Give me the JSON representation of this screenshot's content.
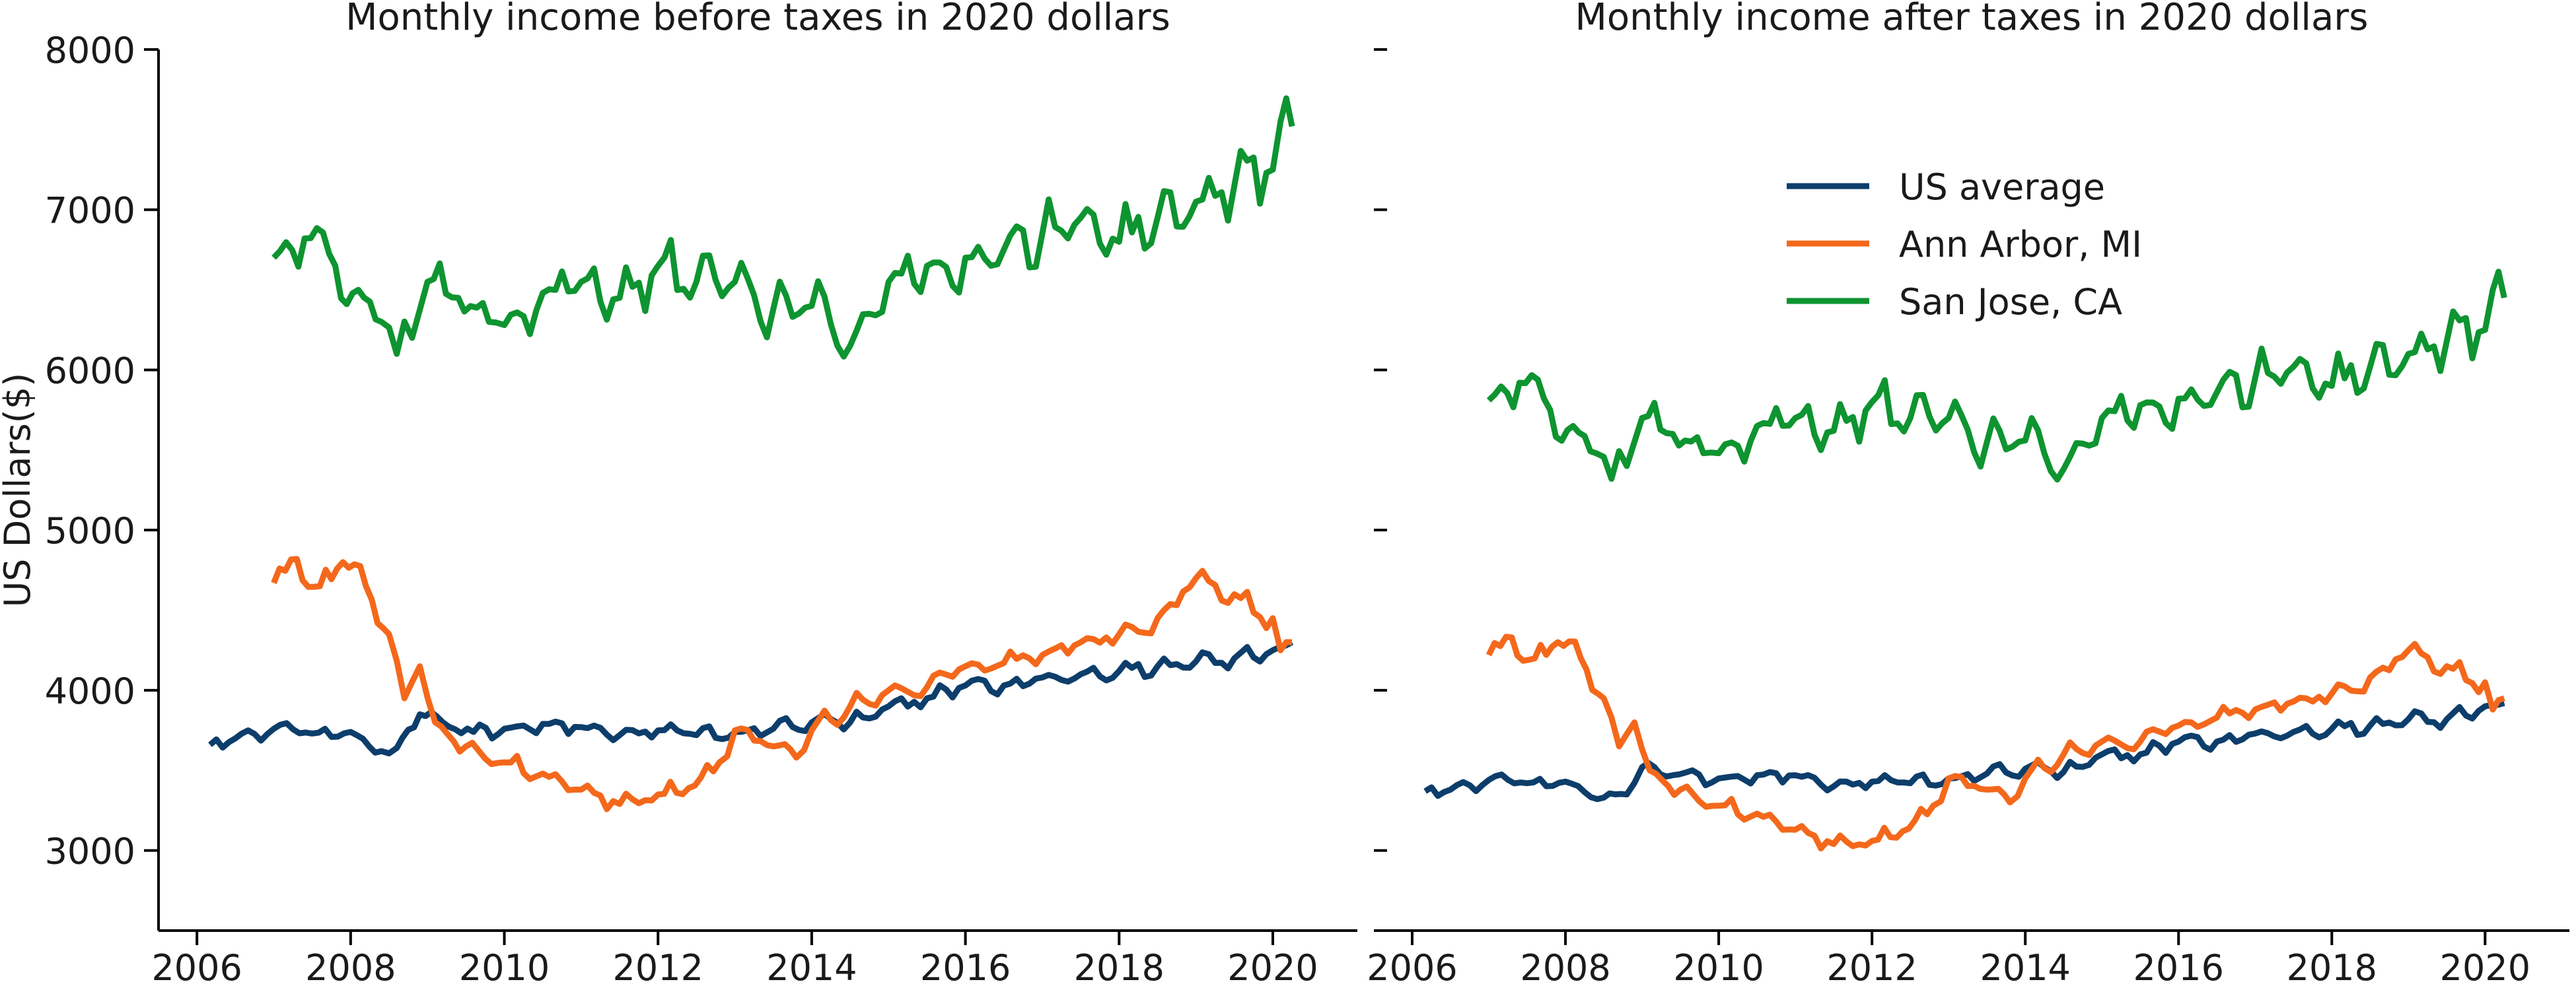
{
  "chart_data": [
    {
      "type": "line",
      "title": "Monthly income before taxes in 2020 dollars",
      "xlabel": "",
      "ylabel": "US Dollars($)",
      "xlim": [
        2005.5,
        2021.1
      ],
      "ylim": [
        2500,
        8000
      ],
      "xticks": [
        2006,
        2008,
        2010,
        2012,
        2014,
        2016,
        2018,
        2020
      ],
      "xtick_labels": [
        "2006",
        "2008",
        "2010",
        "2012",
        "2014",
        "2016",
        "2018",
        "2020"
      ],
      "yticks": [
        3000,
        4000,
        5000,
        6000,
        7000,
        8000
      ],
      "ytick_labels": [
        "3000",
        "4000",
        "5000",
        "6000",
        "7000",
        "8000"
      ],
      "grid": false,
      "series": [
        {
          "name": "US average",
          "color": "#0d3e6b",
          "points": [
            [
              2006.17,
              3660
            ],
            [
              2006.5,
              3700
            ],
            [
              2007.0,
              3760
            ],
            [
              2007.5,
              3730
            ],
            [
              2008.0,
              3740
            ],
            [
              2008.4,
              3620
            ],
            [
              2008.6,
              3640
            ],
            [
              2008.9,
              3850
            ],
            [
              2009.2,
              3800
            ],
            [
              2009.6,
              3740
            ],
            [
              2010.0,
              3760
            ],
            [
              2010.5,
              3790
            ],
            [
              2011.0,
              3770
            ],
            [
              2011.5,
              3720
            ],
            [
              2012.0,
              3750
            ],
            [
              2012.5,
              3720
            ],
            [
              2013.0,
              3740
            ],
            [
              2013.5,
              3760
            ],
            [
              2014.0,
              3800
            ],
            [
              2014.5,
              3800
            ],
            [
              2015.0,
              3900
            ],
            [
              2015.5,
              3950
            ],
            [
              2016.0,
              4030
            ],
            [
              2016.5,
              4030
            ],
            [
              2017.0,
              4080
            ],
            [
              2017.5,
              4100
            ],
            [
              2018.0,
              4120
            ],
            [
              2018.5,
              4150
            ],
            [
              2019.0,
              4180
            ],
            [
              2019.5,
              4200
            ],
            [
              2020.0,
              4250
            ],
            [
              2020.25,
              4300
            ]
          ]
        },
        {
          "name": "Ann Arbor, MI",
          "color": "#f4681b",
          "points": [
            [
              2007.0,
              4670
            ],
            [
              2007.3,
              4820
            ],
            [
              2007.6,
              4650
            ],
            [
              2007.9,
              4800
            ],
            [
              2008.2,
              4650
            ],
            [
              2008.5,
              4350
            ],
            [
              2008.7,
              3950
            ],
            [
              2008.9,
              4150
            ],
            [
              2009.1,
              3800
            ],
            [
              2009.5,
              3650
            ],
            [
              2010.0,
              3550
            ],
            [
              2010.5,
              3480
            ],
            [
              2011.0,
              3380
            ],
            [
              2011.5,
              3290
            ],
            [
              2012.0,
              3350
            ],
            [
              2012.4,
              3390
            ],
            [
              2012.8,
              3550
            ],
            [
              2013.0,
              3750
            ],
            [
              2013.5,
              3650
            ],
            [
              2013.8,
              3580
            ],
            [
              2014.0,
              3750
            ],
            [
              2014.5,
              3900
            ],
            [
              2015.0,
              4000
            ],
            [
              2015.5,
              4020
            ],
            [
              2016.0,
              4150
            ],
            [
              2016.5,
              4170
            ],
            [
              2017.0,
              4220
            ],
            [
              2017.5,
              4300
            ],
            [
              2018.0,
              4350
            ],
            [
              2018.5,
              4450
            ],
            [
              2019.0,
              4700
            ],
            [
              2019.5,
              4600
            ],
            [
              2020.0,
              4450
            ],
            [
              2020.1,
              4250
            ],
            [
              2020.25,
              4300
            ]
          ]
        },
        {
          "name": "San Jose, CA",
          "color": "#0e9430",
          "points": [
            [
              2007.0,
              6700
            ],
            [
              2007.4,
              6820
            ],
            [
              2007.8,
              6650
            ],
            [
              2008.1,
              6500
            ],
            [
              2008.4,
              6300
            ],
            [
              2008.6,
              6100
            ],
            [
              2008.8,
              6200
            ],
            [
              2009.0,
              6550
            ],
            [
              2009.4,
              6450
            ],
            [
              2009.8,
              6300
            ],
            [
              2010.0,
              6280
            ],
            [
              2010.5,
              6480
            ],
            [
              2011.0,
              6550
            ],
            [
              2011.5,
              6450
            ],
            [
              2012.0,
              6650
            ],
            [
              2012.5,
              6550
            ],
            [
              2013.0,
              6550
            ],
            [
              2013.5,
              6380
            ],
            [
              2014.0,
              6400
            ],
            [
              2014.5,
              6150
            ],
            [
              2015.0,
              6550
            ],
            [
              2015.5,
              6650
            ],
            [
              2016.0,
              6700
            ],
            [
              2016.5,
              6750
            ],
            [
              2017.0,
              6850
            ],
            [
              2017.5,
              6950
            ],
            [
              2018.0,
              6800
            ],
            [
              2018.5,
              6950
            ],
            [
              2019.0,
              7050
            ],
            [
              2019.5,
              7150
            ],
            [
              2020.0,
              7250
            ],
            [
              2020.1,
              7550
            ],
            [
              2020.25,
              7520
            ]
          ]
        }
      ]
    },
    {
      "type": "line",
      "title": "Monthly income after taxes in 2020 dollars",
      "xlabel": "",
      "ylabel": "",
      "xlim": [
        2005.5,
        2021.1
      ],
      "ylim": [
        2500,
        8000
      ],
      "xticks": [
        2006,
        2008,
        2010,
        2012,
        2014,
        2016,
        2018,
        2020
      ],
      "xtick_labels": [
        "2006",
        "2008",
        "2010",
        "2012",
        "2014",
        "2016",
        "2018",
        "2020"
      ],
      "yticks": [
        3000,
        4000,
        5000,
        6000,
        7000,
        8000
      ],
      "ytick_labels": [],
      "grid": false,
      "legend_position": "upper center",
      "series": [
        {
          "name": "US average",
          "color": "#0d3e6b",
          "points": [
            [
              2006.17,
              3370
            ],
            [
              2006.5,
              3380
            ],
            [
              2007.0,
              3440
            ],
            [
              2007.5,
              3420
            ],
            [
              2008.0,
              3430
            ],
            [
              2008.5,
              3330
            ],
            [
              2008.8,
              3350
            ],
            [
              2009.0,
              3520
            ],
            [
              2009.4,
              3470
            ],
            [
              2010.0,
              3450
            ],
            [
              2010.5,
              3470
            ],
            [
              2011.0,
              3470
            ],
            [
              2011.5,
              3400
            ],
            [
              2012.0,
              3430
            ],
            [
              2012.5,
              3420
            ],
            [
              2013.0,
              3450
            ],
            [
              2013.5,
              3480
            ],
            [
              2014.0,
              3510
            ],
            [
              2014.5,
              3490
            ],
            [
              2015.0,
              3600
            ],
            [
              2015.5,
              3600
            ],
            [
              2016.0,
              3680
            ],
            [
              2016.5,
              3680
            ],
            [
              2017.0,
              3730
            ],
            [
              2017.5,
              3740
            ],
            [
              2018.0,
              3760
            ],
            [
              2018.5,
              3780
            ],
            [
              2019.0,
              3820
            ],
            [
              2019.5,
              3820
            ],
            [
              2020.0,
              3900
            ],
            [
              2020.25,
              3920
            ]
          ]
        },
        {
          "name": "Ann Arbor, MI",
          "color": "#f4681b",
          "points": [
            [
              2007.0,
              4220
            ],
            [
              2007.3,
              4330
            ],
            [
              2007.6,
              4200
            ],
            [
              2007.9,
              4300
            ],
            [
              2008.2,
              4200
            ],
            [
              2008.5,
              3950
            ],
            [
              2008.7,
              3650
            ],
            [
              2008.9,
              3800
            ],
            [
              2009.1,
              3500
            ],
            [
              2009.5,
              3380
            ],
            [
              2010.0,
              3280
            ],
            [
              2010.5,
              3230
            ],
            [
              2011.0,
              3130
            ],
            [
              2011.5,
              3040
            ],
            [
              2012.0,
              3060
            ],
            [
              2012.4,
              3120
            ],
            [
              2012.8,
              3280
            ],
            [
              2013.0,
              3450
            ],
            [
              2013.5,
              3380
            ],
            [
              2013.8,
              3300
            ],
            [
              2014.0,
              3450
            ],
            [
              2014.5,
              3600
            ],
            [
              2015.0,
              3680
            ],
            [
              2015.5,
              3680
            ],
            [
              2016.0,
              3780
            ],
            [
              2016.5,
              3830
            ],
            [
              2017.0,
              3880
            ],
            [
              2017.5,
              3930
            ],
            [
              2018.0,
              3980
            ],
            [
              2018.5,
              4080
            ],
            [
              2019.0,
              4250
            ],
            [
              2019.5,
              4150
            ],
            [
              2020.0,
              4050
            ],
            [
              2020.1,
              3880
            ],
            [
              2020.25,
              3950
            ]
          ]
        },
        {
          "name": "San Jose, CA",
          "color": "#0e9430",
          "points": [
            [
              2007.0,
              5810
            ],
            [
              2007.4,
              5920
            ],
            [
              2007.8,
              5750
            ],
            [
              2008.1,
              5650
            ],
            [
              2008.4,
              5480
            ],
            [
              2008.6,
              5320
            ],
            [
              2008.8,
              5400
            ],
            [
              2009.0,
              5700
            ],
            [
              2009.4,
              5600
            ],
            [
              2009.8,
              5480
            ],
            [
              2010.0,
              5480
            ],
            [
              2010.5,
              5650
            ],
            [
              2011.0,
              5700
            ],
            [
              2011.5,
              5620
            ],
            [
              2012.0,
              5800
            ],
            [
              2012.5,
              5700
            ],
            [
              2013.0,
              5700
            ],
            [
              2013.5,
              5550
            ],
            [
              2014.0,
              5560
            ],
            [
              2014.5,
              5380
            ],
            [
              2015.0,
              5700
            ],
            [
              2015.5,
              5780
            ],
            [
              2016.0,
              5820
            ],
            [
              2016.5,
              5860
            ],
            [
              2017.0,
              5950
            ],
            [
              2017.5,
              6020
            ],
            [
              2018.0,
              5900
            ],
            [
              2018.5,
              6020
            ],
            [
              2019.0,
              6100
            ],
            [
              2019.5,
              6180
            ],
            [
              2020.0,
              6250
            ],
            [
              2020.1,
              6500
            ],
            [
              2020.25,
              6450
            ]
          ]
        }
      ]
    }
  ]
}
